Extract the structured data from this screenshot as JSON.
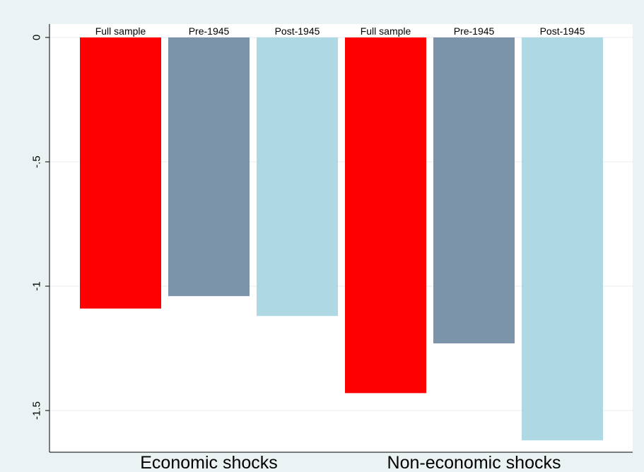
{
  "chart_data": {
    "type": "bar",
    "orientation": "vertical",
    "background": "#eaf2f3",
    "plot_background": "#ffffff",
    "grid": true,
    "ylim": [
      -1.67,
      0.0
    ],
    "yticks": [
      0,
      -0.5,
      -1,
      -1.5
    ],
    "ytick_labels": [
      "0",
      "-.5",
      "-1",
      "-1.5"
    ],
    "groups": [
      {
        "name": "Economic shocks",
        "bars": [
          {
            "label": "Full sample",
            "value": -1.09,
            "color": "#ff0000"
          },
          {
            "label": "Pre-1945",
            "value": -1.04,
            "color": "#7b94aa"
          },
          {
            "label": "Post-1945",
            "value": -1.12,
            "color": "#add8e4"
          }
        ]
      },
      {
        "name": "Non-economic shocks",
        "bars": [
          {
            "label": "Full sample",
            "value": -1.43,
            "color": "#ff0000"
          },
          {
            "label": "Pre-1945",
            "value": -1.23,
            "color": "#7b94aa"
          },
          {
            "label": "Post-1945",
            "value": -1.62,
            "color": "#add8e4"
          }
        ]
      }
    ]
  }
}
